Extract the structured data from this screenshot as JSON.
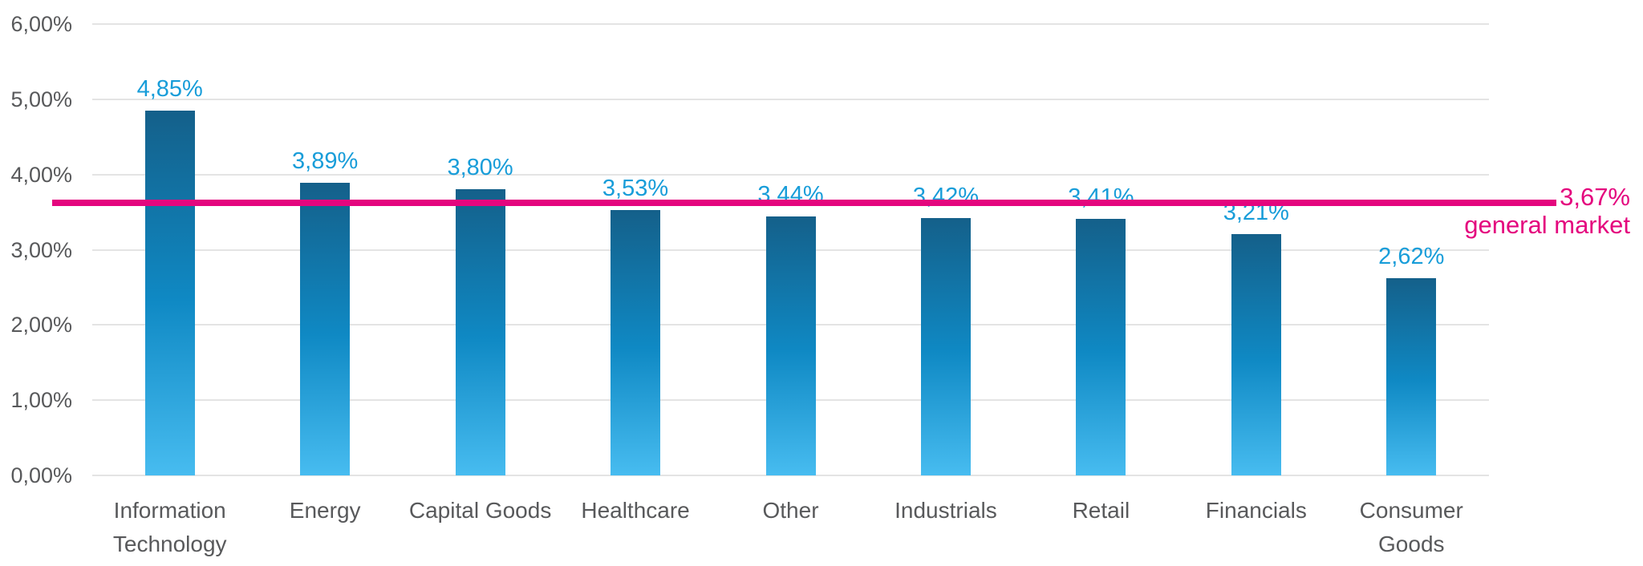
{
  "chart_data": {
    "type": "bar",
    "title": "",
    "categories": [
      "Information Technology",
      "Energy",
      "Capital Goods",
      "Healthcare",
      "Other",
      "Industrials",
      "Retail",
      "Financials",
      "Consumer Goods"
    ],
    "category_lines": [
      [
        "Information",
        "Technology"
      ],
      [
        "Energy"
      ],
      [
        "Capital Goods"
      ],
      [
        "Healthcare"
      ],
      [
        "Other"
      ],
      [
        "Industrials"
      ],
      [
        "Retail"
      ],
      [
        "Financials"
      ],
      [
        "Consumer",
        "Goods"
      ]
    ],
    "values": [
      4.85,
      3.89,
      3.8,
      3.53,
      3.44,
      3.42,
      3.41,
      3.21,
      2.62
    ],
    "value_labels": [
      "4,85%",
      "3,89%",
      "3,80%",
      "3,53%",
      "3,44%",
      "3,42%",
      "3,41%",
      "3,21%",
      "2,62%"
    ],
    "ytick_values": [
      0,
      1,
      2,
      3,
      4,
      5,
      6
    ],
    "ytick_labels": [
      "0,00%",
      "1,00%",
      "2,00%",
      "3,00%",
      "4,00%",
      "5,00%",
      "6,00%"
    ],
    "ylim": [
      0,
      6
    ],
    "grid": true,
    "legend_position": "none",
    "reference_line": {
      "value": 3.67,
      "value_label": "3,67%",
      "text": "general market"
    }
  },
  "colors": {
    "bar_gradient_top": "#14608a",
    "bar_gradient_mid": "#0f89c4",
    "bar_gradient_bottom": "#47bcf0",
    "value_label": "#189dd9",
    "axis_label": "#58595b",
    "gridline": "#e4e4e4",
    "reference": "#e4067e",
    "background": "#ffffff"
  }
}
